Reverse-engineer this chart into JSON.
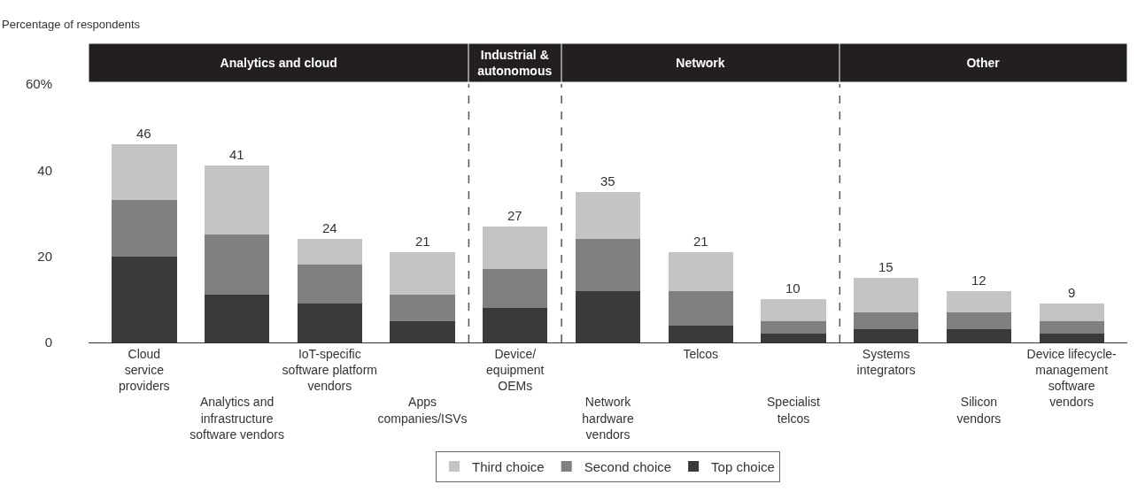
{
  "chart_data": {
    "type": "bar",
    "stacked": true,
    "ylabel": "Percentage of respondents",
    "categories": [
      "Cloud\nservice\nproviders",
      "Analytics and\ninfrastructure\nsoftware vendors",
      "IoT-specific\nsoftware platform\nvendors",
      "Apps\ncompanies/ISVs",
      "Device/\nequipment\nOEMs",
      "Network\nhardware\nvendors",
      "Telcos",
      "Specialist\ntelcos",
      "Systems\nintegrators",
      "Silicon\nvendors",
      "Device lifecycle-\nmanagement\nsoftware\nvendors"
    ],
    "series": [
      {
        "name": "Top choice",
        "color": "#3a3a3a",
        "values": [
          20,
          11,
          9,
          5,
          8,
          12,
          4,
          2,
          3,
          3,
          2
        ]
      },
      {
        "name": "Second choice",
        "color": "#808080",
        "values": [
          13,
          14,
          9,
          6,
          9,
          12,
          8,
          3,
          4,
          4,
          3
        ]
      },
      {
        "name": "Third choice",
        "color": "#c4c4c4",
        "values": [
          13,
          16,
          6,
          10,
          10,
          11,
          9,
          5,
          8,
          5,
          4
        ]
      }
    ],
    "totals": [
      "46",
      "41",
      "24",
      "21",
      "27",
      "35",
      "21",
      "10",
      "15",
      "12",
      "9"
    ],
    "ylim": [
      0,
      60
    ],
    "yticks": [
      0,
      20,
      40,
      {
        "value": 60,
        "label": "60%"
      }
    ],
    "annotations": [
      "Analytics and cloud",
      "Industrial &\nautonomous",
      "Network",
      "Other"
    ],
    "grid": false,
    "legend": "bottom"
  }
}
